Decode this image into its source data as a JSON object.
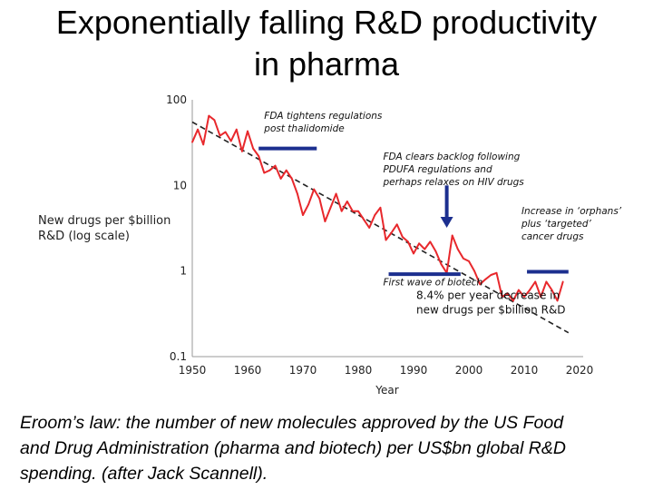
{
  "slide": {
    "title_line1": "Exponentially falling R&D productivity",
    "title_line2": "in pharma",
    "caption_line1": "Eroom’s law: the number of new molecules approved by the US Food",
    "caption_line2": "and Drug Administration (pharma and biotech) per US$bn global R&D",
    "caption_line3": "spending.  (after Jack Scannell)."
  },
  "chart_data": {
    "type": "line",
    "title": "",
    "xlabel": "Year",
    "ylabel_line1": "New drugs per $billion",
    "ylabel_line2": "R&D (log scale)",
    "yscale": "log",
    "xlim": [
      1950,
      2020
    ],
    "ylim": [
      0.1,
      100
    ],
    "xticks": [
      "1950",
      "1960",
      "1970",
      "1980",
      "1990",
      "2000",
      "2010",
      "2020"
    ],
    "yticks": [
      "100",
      "10",
      "1",
      "0.1"
    ],
    "series_color": "#e8282c",
    "trend_color": "#222222",
    "annotation_color": "#1c2f8f",
    "series": [
      {
        "x": [
          1950,
          1951,
          1952,
          1953,
          1954,
          1955,
          1956,
          1957,
          1958,
          1959,
          1960,
          1961,
          1962,
          1963,
          1964,
          1965,
          1966,
          1967,
          1968,
          1969,
          1970,
          1971,
          1972,
          1973,
          1974,
          1975,
          1976,
          1977,
          1978,
          1979,
          1980,
          1981,
          1982,
          1983,
          1984,
          1985,
          1986,
          1987,
          1988,
          1989,
          1990,
          1991,
          1992,
          1993,
          1994,
          1995,
          1996,
          1997,
          1998,
          1999,
          2000,
          2001,
          2002,
          2003,
          2004,
          2005,
          2006,
          2007,
          2008,
          2009,
          2010,
          2011,
          2012,
          2013,
          2014,
          2015,
          2016,
          2017
        ],
        "y": [
          32,
          45,
          30,
          65,
          58,
          38,
          42,
          33,
          45,
          25,
          43,
          27,
          22,
          14,
          15,
          17,
          12,
          15,
          12,
          8,
          4.5,
          6,
          9,
          7,
          3.8,
          5.5,
          8,
          5,
          6.5,
          5,
          5,
          4,
          3.2,
          4.5,
          5.5,
          2.3,
          2.8,
          3.5,
          2.5,
          2.2,
          1.6,
          2.1,
          1.8,
          2.2,
          1.7,
          1.2,
          0.95,
          2.6,
          1.8,
          1.4,
          1.3,
          1.0,
          0.7,
          0.8,
          0.9,
          0.95,
          0.5,
          0.55,
          0.45,
          0.6,
          0.5,
          0.6,
          0.75,
          0.5,
          0.75,
          0.6,
          0.45,
          0.75
        ]
      }
    ],
    "trend": {
      "x": [
        1950,
        2018
      ],
      "y": [
        55,
        0.19
      ]
    },
    "annotations": [
      {
        "lines": [
          "FDA tightens regulations",
          "post thalidomide"
        ],
        "bar_x": [
          1962,
          1972.5
        ],
        "bar_y": 27,
        "text_x": 1963,
        "text_y": 60
      },
      {
        "lines": [
          "FDA clears backlog following",
          "PDUFA regulations and",
          "perhaps relaxes on HIV drugs"
        ],
        "arrow_x": 1996,
        "arrow_from": 10,
        "arrow_to": 3.2,
        "text_x": 1984.5,
        "text_y": 20
      },
      {
        "lines": [
          "First wave of biotech"
        ],
        "bar_x": [
          1985.5,
          1998.5
        ],
        "bar_y": 0.92,
        "text_x": 1984.5,
        "text_y": 0.68
      },
      {
        "lines": [
          "Increase in ‘orphans’",
          "plus ‘targeted’",
          "cancer drugs"
        ],
        "bar_x": [
          2010.5,
          2018
        ],
        "bar_y": 0.98,
        "text_x": 2009.5,
        "text_y": 4.6
      }
    ],
    "trend_label_lines": [
      "8.4% per year decrease in",
      "new drugs per $billion R&D"
    ],
    "trend_label_pos": {
      "x": 1990.5,
      "y": 0.47
    }
  }
}
